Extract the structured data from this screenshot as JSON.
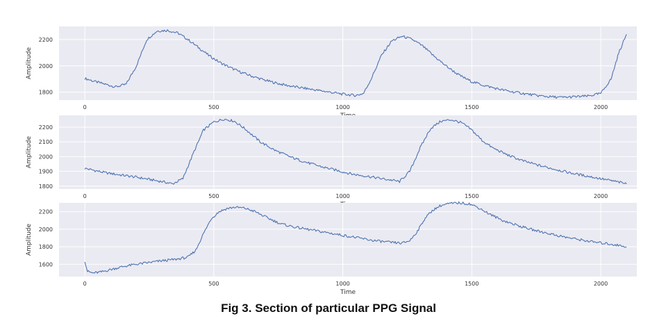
{
  "caption": "Fig 3. Section of particular PPG Signal",
  "style": {
    "panel_bg": "#eaeaf2",
    "grid": "#ffffff",
    "line": "#4c72b0",
    "text": "#333333"
  },
  "chart_data": [
    {
      "type": "line",
      "title": "",
      "xlabel": "Time",
      "ylabel": "Amplitude",
      "xlim": [
        -100,
        2140
      ],
      "ylim": [
        1740,
        2300
      ],
      "xticks": [
        0,
        500,
        1000,
        1500,
        2000
      ],
      "yticks": [
        1800,
        2000,
        2200
      ],
      "grid": true,
      "series": [
        {
          "x": [
            0,
            40,
            80,
            120,
            160,
            200,
            240,
            280,
            320,
            360,
            400,
            440,
            480,
            520,
            560,
            600,
            650,
            700,
            750,
            800,
            850,
            900,
            950,
            1000,
            1050,
            1080,
            1110,
            1150,
            1190,
            1230,
            1270,
            1310,
            1350,
            1400,
            1450,
            1500,
            1550,
            1600,
            1650,
            1700,
            1750,
            1800,
            1850,
            1900,
            1950,
            2000,
            2040,
            2070,
            2100
          ],
          "y": [
            1905,
            1880,
            1860,
            1840,
            1860,
            2000,
            2200,
            2265,
            2270,
            2250,
            2200,
            2140,
            2080,
            2030,
            1990,
            1955,
            1920,
            1890,
            1865,
            1845,
            1830,
            1815,
            1800,
            1785,
            1775,
            1790,
            1900,
            2080,
            2190,
            2225,
            2200,
            2150,
            2080,
            2000,
            1930,
            1880,
            1850,
            1825,
            1805,
            1790,
            1775,
            1765,
            1760,
            1765,
            1770,
            1790,
            1900,
            2100,
            2240
          ]
        }
      ]
    },
    {
      "type": "line",
      "title": "",
      "xlabel": "Time",
      "ylabel": "Amplitude",
      "xlim": [
        -100,
        2140
      ],
      "ylim": [
        1780,
        2280
      ],
      "xticks": [
        0,
        500,
        1000,
        1500,
        2000
      ],
      "yticks": [
        1800,
        1900,
        2000,
        2100,
        2200
      ],
      "grid": true,
      "series": [
        {
          "x": [
            0,
            40,
            80,
            120,
            160,
            200,
            250,
            300,
            340,
            380,
            420,
            460,
            500,
            540,
            580,
            620,
            680,
            740,
            800,
            860,
            920,
            980,
            1040,
            1100,
            1150,
            1190,
            1220,
            1260,
            1300,
            1340,
            1380,
            1420,
            1460,
            1500,
            1540,
            1580,
            1640,
            1700,
            1760,
            1820,
            1880,
            1940,
            2000,
            2060,
            2100
          ],
          "y": [
            1920,
            1905,
            1890,
            1880,
            1870,
            1860,
            1845,
            1830,
            1815,
            1850,
            2020,
            2180,
            2235,
            2255,
            2240,
            2190,
            2100,
            2040,
            1995,
            1960,
            1930,
            1905,
            1880,
            1865,
            1850,
            1840,
            1830,
            1900,
            2060,
            2190,
            2240,
            2250,
            2230,
            2180,
            2110,
            2060,
            2010,
            1970,
            1940,
            1915,
            1890,
            1870,
            1850,
            1830,
            1815
          ]
        }
      ]
    },
    {
      "type": "line",
      "title": "",
      "xlabel": "Time",
      "ylabel": "Amplitude",
      "xlim": [
        -100,
        2140
      ],
      "ylim": [
        1460,
        2300
      ],
      "xticks": [
        0,
        500,
        1000,
        1500,
        2000
      ],
      "yticks": [
        1600,
        1800,
        2000,
        2200
      ],
      "grid": true,
      "series": [
        {
          "x": [
            0,
            10,
            30,
            60,
            100,
            150,
            200,
            250,
            300,
            350,
            400,
            430,
            460,
            490,
            520,
            550,
            580,
            620,
            660,
            700,
            760,
            820,
            880,
            940,
            1000,
            1060,
            1120,
            1180,
            1230,
            1260,
            1290,
            1320,
            1350,
            1380,
            1410,
            1450,
            1490,
            1530,
            1570,
            1620,
            1680,
            1740,
            1800,
            1860,
            1920,
            1980,
            2040,
            2100
          ],
          "y": [
            1640,
            1520,
            1500,
            1510,
            1540,
            1575,
            1600,
            1620,
            1640,
            1655,
            1680,
            1760,
            1950,
            2120,
            2200,
            2235,
            2250,
            2240,
            2200,
            2140,
            2060,
            2020,
            1990,
            1960,
            1930,
            1900,
            1870,
            1850,
            1840,
            1870,
            1980,
            2130,
            2220,
            2270,
            2290,
            2300,
            2290,
            2240,
            2170,
            2100,
            2040,
            1990,
            1950,
            1910,
            1880,
            1850,
            1830,
            1800
          ]
        }
      ]
    }
  ]
}
